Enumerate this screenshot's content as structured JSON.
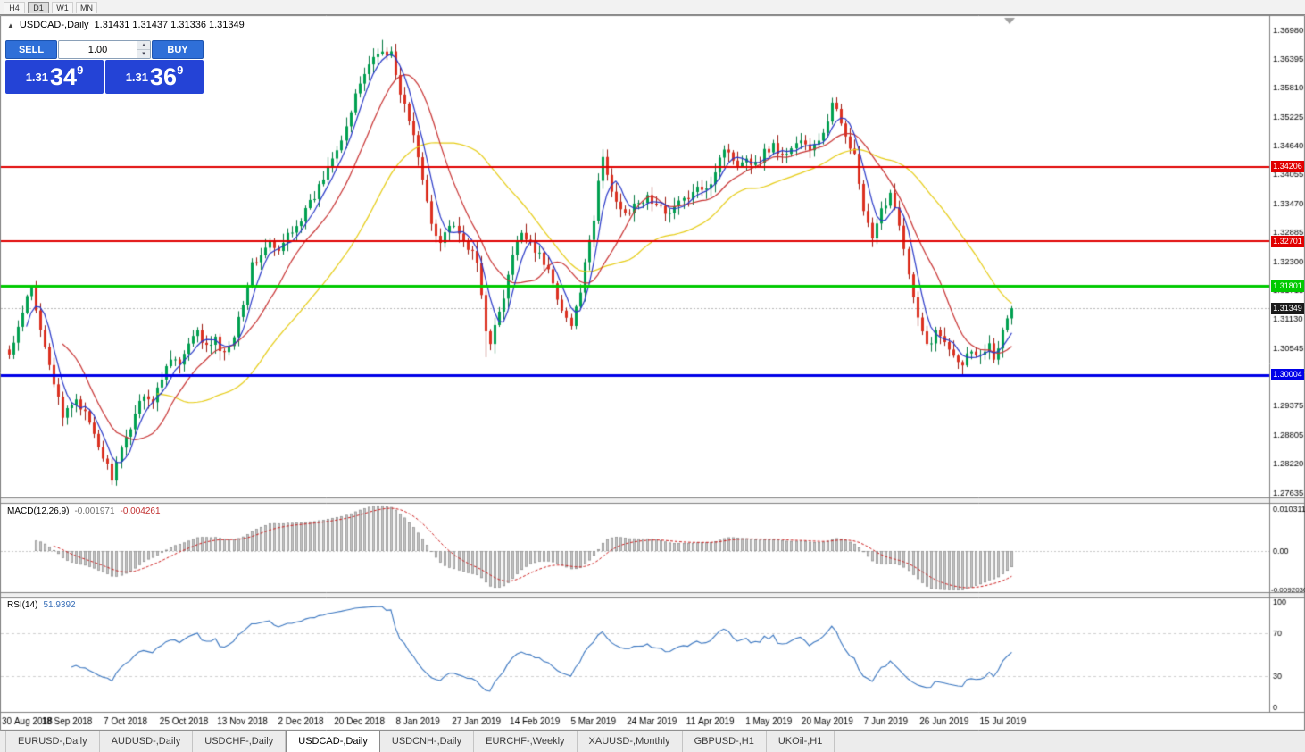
{
  "toolbar": {
    "periods": [
      {
        "label": "H4",
        "active": false
      },
      {
        "label": "D1",
        "active": true
      },
      {
        "label": "W1",
        "active": false
      },
      {
        "label": "MN",
        "active": false
      }
    ]
  },
  "chart": {
    "collapse_icon": "▲",
    "title_symbol": "USDCAD-,Daily",
    "title_ohlc": "1.31431 1.31437 1.31336 1.31349"
  },
  "trade_panel": {
    "sell_label": "SELL",
    "buy_label": "BUY",
    "volume": "1.00",
    "volume_up_icon": "▴",
    "volume_down_icon": "▾",
    "sell_price": {
      "prefix": "1.31",
      "big": "34",
      "sup": "9"
    },
    "buy_price": {
      "prefix": "1.31",
      "big": "36",
      "sup": "9"
    }
  },
  "indicators": {
    "macd": {
      "name": "MACD(12,26,9)",
      "value_main": "-0.001971",
      "value_signal": "-0.004261",
      "axis_labels": [
        "0.010311",
        "0.00",
        "-0.0092030"
      ]
    },
    "rsi": {
      "name": "RSI(14)",
      "value": "51.9392",
      "axis_labels": [
        "100",
        "70",
        "30",
        "0"
      ]
    }
  },
  "tabs": [
    {
      "label": "EURUSD-,Daily",
      "active": false
    },
    {
      "label": "AUDUSD-,Daily",
      "active": false
    },
    {
      "label": "USDCHF-,Daily",
      "active": false
    },
    {
      "label": "USDCAD-,Daily",
      "active": true
    },
    {
      "label": "USDCNH-,Daily",
      "active": false
    },
    {
      "label": "EURCHF-,Weekly",
      "active": false
    },
    {
      "label": "XAUUSD-,Monthly",
      "active": false
    },
    {
      "label": "GBPUSD-,H1",
      "active": false
    },
    {
      "label": "UKOil-,H1",
      "active": false
    }
  ],
  "chart_data": {
    "type": "candlestick",
    "symbol": "USDCAD",
    "timeframe": "Daily",
    "ohlc": {
      "open": 1.31431,
      "high": 1.31437,
      "low": 1.31336,
      "close": 1.31349
    },
    "y_axis_ticks": [
      "1.36980",
      "1.36395",
      "1.35810",
      "1.35225",
      "1.34640",
      "1.34055",
      "1.33470",
      "1.32885",
      "1.32300",
      "1.31715",
      "1.31130",
      "1.30545",
      "1.29960",
      "1.29375",
      "1.28805",
      "1.28220",
      "1.27635"
    ],
    "x_axis_labels": [
      "30 Aug 2018",
      "18 Sep 2018",
      "7 Oct 2018",
      "25 Oct 2018",
      "13 Nov 2018",
      "2 Dec 2018",
      "20 Dec 2018",
      "8 Jan 2019",
      "27 Jan 2019",
      "14 Feb 2019",
      "5 Mar 2019",
      "24 Mar 2019",
      "11 Apr 2019",
      "1 May 2019",
      "20 May 2019",
      "7 Jun 2019",
      "26 Jun 2019",
      "15 Jul 2019"
    ],
    "candles_per_label": 13,
    "num_candles": 224,
    "levels": [
      {
        "label": "1.34206",
        "price": 1.34206,
        "color": "#e00000",
        "width": 2
      },
      {
        "label": "1.32701",
        "price": 1.32701,
        "color": "#e00000",
        "width": 2
      },
      {
        "label": "1.31801",
        "price": 1.31801,
        "color": "#00ca00",
        "width": 3
      },
      {
        "label": "1.30004",
        "price": 1.30004,
        "color": "#0000e8",
        "width": 3
      }
    ],
    "current_price": {
      "label": "1.31349",
      "price": 1.31349,
      "tag_color": "#1a1a1a"
    },
    "candle_colors": {
      "up": "#00a050",
      "down": "#dc3020",
      "up_wick": "#067a42",
      "down_wick": "#9c1c12"
    },
    "moving_averages": [
      {
        "period": 34,
        "color": "#e6cc14"
      },
      {
        "period": 13,
        "color": "#c83232"
      },
      {
        "period": 5,
        "color": "#2838c8"
      }
    ],
    "macd": {
      "fast": 12,
      "slow": 26,
      "signal": 9,
      "histogram_color": "#c6c6c6",
      "histogram_border": "#8a8a8a",
      "signal_color": "#cf2020"
    },
    "rsi": {
      "period": 14,
      "color": "#3a76c0",
      "levels": [
        70,
        30
      ]
    },
    "close_anchors": [
      [
        0,
        1.304
      ],
      [
        2,
        1.309
      ],
      [
        4,
        1.3155
      ],
      [
        5,
        1.3175
      ],
      [
        6,
        1.313
      ],
      [
        8,
        1.3065
      ],
      [
        10,
        1.2985
      ],
      [
        12,
        1.291
      ],
      [
        13,
        1.293
      ],
      [
        15,
        1.2955
      ],
      [
        17,
        1.292
      ],
      [
        19,
        1.2875
      ],
      [
        21,
        1.2835
      ],
      [
        23,
        1.2795
      ],
      [
        24,
        1.282
      ],
      [
        26,
        1.287
      ],
      [
        28,
        1.2925
      ],
      [
        30,
        1.2965
      ],
      [
        32,
        1.2945
      ],
      [
        34,
        1.2995
      ],
      [
        36,
        1.304
      ],
      [
        38,
        1.302
      ],
      [
        40,
        1.306
      ],
      [
        42,
        1.3085
      ],
      [
        44,
        1.3055
      ],
      [
        46,
        1.307
      ],
      [
        48,
        1.304
      ],
      [
        50,
        1.3085
      ],
      [
        52,
        1.315
      ],
      [
        54,
        1.322
      ],
      [
        56,
        1.3245
      ],
      [
        58,
        1.3265
      ],
      [
        60,
        1.3245
      ],
      [
        62,
        1.3285
      ],
      [
        64,
        1.3305
      ],
      [
        66,
        1.333
      ],
      [
        68,
        1.336
      ],
      [
        70,
        1.34
      ],
      [
        72,
        1.3445
      ],
      [
        74,
        1.348
      ],
      [
        76,
        1.353
      ],
      [
        78,
        1.359
      ],
      [
        80,
        1.363
      ],
      [
        82,
        1.365
      ],
      [
        83,
        1.3662
      ],
      [
        84,
        1.364
      ],
      [
        85,
        1.3655
      ],
      [
        86,
        1.36
      ],
      [
        88,
        1.3545
      ],
      [
        90,
        1.348
      ],
      [
        92,
        1.3395
      ],
      [
        94,
        1.331
      ],
      [
        96,
        1.327
      ],
      [
        98,
        1.3305
      ],
      [
        100,
        1.328
      ],
      [
        102,
        1.326
      ],
      [
        104,
        1.3225
      ],
      [
        105,
        1.316
      ],
      [
        106,
        1.3095
      ],
      [
        107,
        1.307
      ],
      [
        108,
        1.3095
      ],
      [
        110,
        1.3155
      ],
      [
        112,
        1.324
      ],
      [
        114,
        1.329
      ],
      [
        116,
        1.327
      ],
      [
        118,
        1.324
      ],
      [
        120,
        1.321
      ],
      [
        122,
        1.316
      ],
      [
        124,
        1.3115
      ],
      [
        125,
        1.31
      ],
      [
        126,
        1.313
      ],
      [
        128,
        1.322
      ],
      [
        130,
        1.331
      ],
      [
        131,
        1.339
      ],
      [
        132,
        1.344
      ],
      [
        133,
        1.3405
      ],
      [
        134,
        1.337
      ],
      [
        136,
        1.334
      ],
      [
        138,
        1.333
      ],
      [
        140,
        1.3345
      ],
      [
        142,
        1.336
      ],
      [
        144,
        1.334
      ],
      [
        146,
        1.333
      ],
      [
        148,
        1.334
      ],
      [
        150,
        1.3355
      ],
      [
        152,
        1.3365
      ],
      [
        154,
        1.338
      ],
      [
        156,
        1.339
      ],
      [
        158,
        1.344
      ],
      [
        159,
        1.346
      ],
      [
        160,
        1.3445
      ],
      [
        162,
        1.343
      ],
      [
        164,
        1.344
      ],
      [
        166,
        1.3425
      ],
      [
        168,
        1.345
      ],
      [
        170,
        1.3465
      ],
      [
        172,
        1.344
      ],
      [
        174,
        1.346
      ],
      [
        176,
        1.3475
      ],
      [
        178,
        1.345
      ],
      [
        180,
        1.3475
      ],
      [
        182,
        1.351
      ],
      [
        183,
        1.3545
      ],
      [
        184,
        1.353
      ],
      [
        186,
        1.349
      ],
      [
        188,
        1.344
      ],
      [
        190,
        1.333
      ],
      [
        192,
        1.327
      ],
      [
        194,
        1.333
      ],
      [
        196,
        1.337
      ],
      [
        198,
        1.331
      ],
      [
        200,
        1.32
      ],
      [
        202,
        1.311
      ],
      [
        204,
        1.306
      ],
      [
        206,
        1.3085
      ],
      [
        208,
        1.307
      ],
      [
        210,
        1.3045
      ],
      [
        212,
        1.3025
      ],
      [
        214,
        1.3055
      ],
      [
        216,
        1.3038
      ],
      [
        218,
        1.307
      ],
      [
        219,
        1.304
      ],
      [
        220,
        1.306
      ],
      [
        221,
        1.3085
      ],
      [
        222,
        1.311
      ],
      [
        223,
        1.31349
      ]
    ],
    "wick_overrides": {
      "23": {
        "low": 1.2778
      },
      "83": {
        "high": 1.3677
      },
      "106": {
        "low": 1.3036
      },
      "132": {
        "high": 1.3456
      },
      "183": {
        "high": 1.356
      },
      "212": {
        "low": 1.2998
      }
    }
  }
}
